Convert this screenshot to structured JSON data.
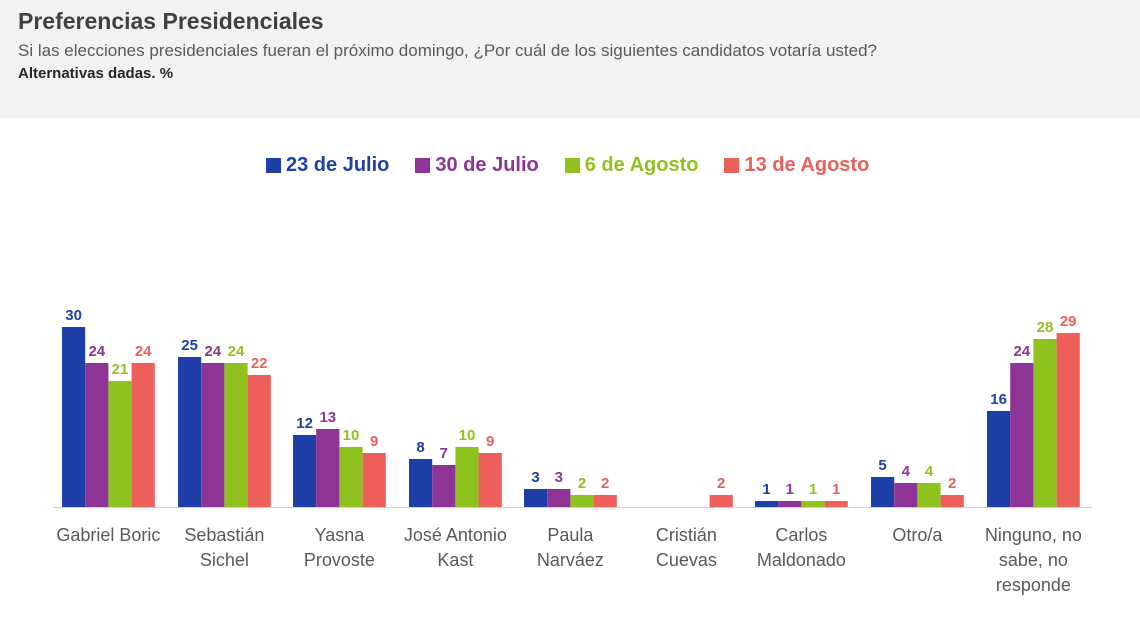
{
  "header": {
    "title": "Preferencias Presidenciales",
    "subtitle": "Si las elecciones presidenciales fueran el próximo domingo, ¿Por cuál de los siguientes candidatos votaría usted?",
    "note": "Alternativas dadas. %"
  },
  "colors": [
    "#1f3fa8",
    "#8e3496",
    "#8fc21f",
    "#ec5f5a"
  ],
  "chart_data": {
    "type": "bar",
    "title": "Preferencias Presidenciales",
    "ylim": [
      0,
      30
    ],
    "grid": false,
    "legend": "top-center",
    "categories": [
      [
        "Gabriel Boric"
      ],
      [
        "Sebastián",
        "Sichel"
      ],
      [
        "Yasna",
        "Provoste"
      ],
      [
        "José Antonio",
        "Kast"
      ],
      [
        "Paula",
        "Narváez"
      ],
      [
        "Cristián",
        "Cuevas"
      ],
      [
        "Carlos",
        "Maldonado"
      ],
      [
        "Otro/a"
      ],
      [
        "Ninguno, no",
        "sabe, no",
        "responde"
      ]
    ],
    "series": [
      {
        "name": "23 de Julio",
        "values": [
          30,
          25,
          12,
          8,
          3,
          null,
          1,
          5,
          16
        ]
      },
      {
        "name": "30 de Julio",
        "values": [
          24,
          24,
          13,
          7,
          3,
          null,
          1,
          4,
          24
        ]
      },
      {
        "name": "6 de Agosto",
        "values": [
          21,
          24,
          10,
          10,
          2,
          null,
          1,
          4,
          28
        ]
      },
      {
        "name": "13 de Agosto",
        "values": [
          24,
          22,
          9,
          9,
          2,
          2,
          1,
          2,
          29
        ]
      }
    ]
  }
}
